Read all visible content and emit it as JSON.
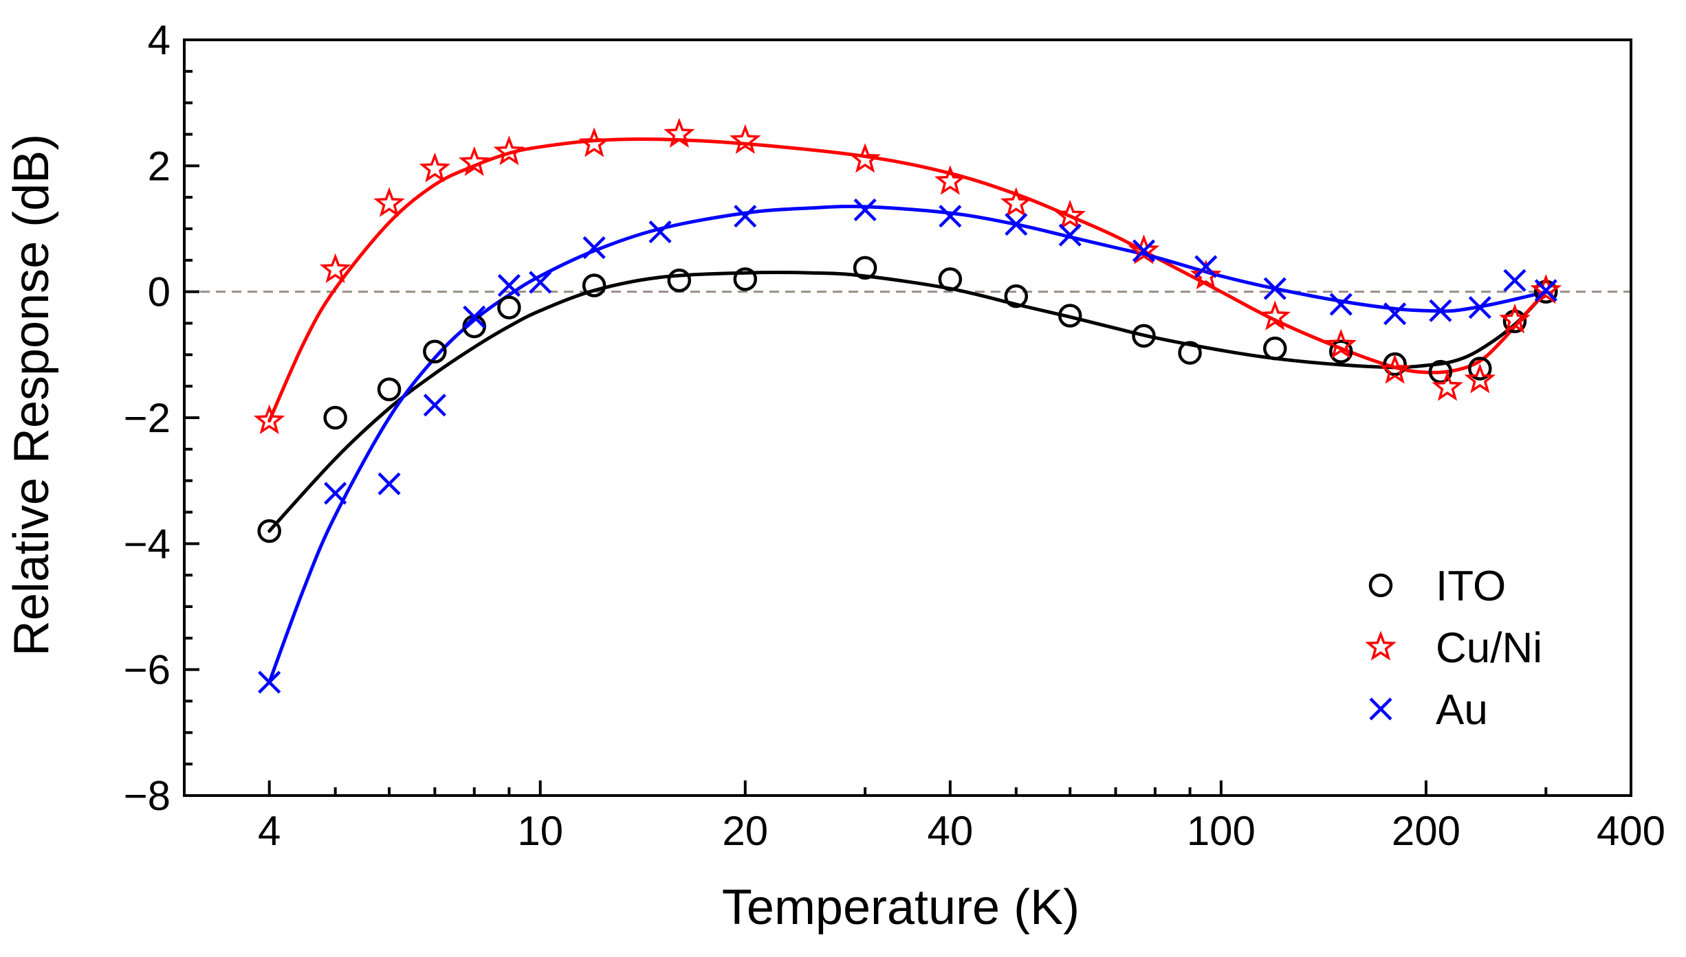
{
  "chart_data": {
    "type": "scatter",
    "title": "",
    "xlabel": "Temperature (K)",
    "ylabel": "Relative Response (dB)",
    "xscale": "log",
    "xlim": [
      3,
      400
    ],
    "ylim": [
      -8,
      4
    ],
    "x_ticks": [
      4,
      10,
      20,
      40,
      100,
      200,
      400
    ],
    "x_tick_labels": [
      "4",
      "10",
      "20",
      "40",
      "100",
      "200",
      "400"
    ],
    "y_ticks": [
      -8,
      -6,
      -4,
      -2,
      0,
      2,
      4
    ],
    "y_tick_labels": [
      "−8",
      "−6",
      "−4",
      "−2",
      "0",
      "2",
      "4"
    ],
    "reference_line": {
      "y": 0,
      "style": "dashed",
      "color": "#9a8c86"
    },
    "legend_position": "bottom-right",
    "series": [
      {
        "name": "ITO",
        "marker": "circle",
        "color": "#000000",
        "points": [
          [
            4,
            -3.8
          ],
          [
            5,
            -2.0
          ],
          [
            6,
            -1.55
          ],
          [
            7,
            -0.95
          ],
          [
            8,
            -0.55
          ],
          [
            9,
            -0.25
          ],
          [
            12,
            0.1
          ],
          [
            16,
            0.18
          ],
          [
            20,
            0.2
          ],
          [
            30,
            0.38
          ],
          [
            40,
            0.2
          ],
          [
            50,
            -0.07
          ],
          [
            60,
            -0.38
          ],
          [
            77,
            -0.7
          ],
          [
            90,
            -0.97
          ],
          [
            120,
            -0.9
          ],
          [
            150,
            -0.95
          ],
          [
            180,
            -1.15
          ],
          [
            210,
            -1.27
          ],
          [
            240,
            -1.22
          ],
          [
            270,
            -0.47
          ],
          [
            300,
            0.0
          ]
        ],
        "fit": [
          [
            4,
            -3.8
          ],
          [
            5,
            -2.65
          ],
          [
            6,
            -1.85
          ],
          [
            7,
            -1.3
          ],
          [
            8,
            -0.88
          ],
          [
            9,
            -0.55
          ],
          [
            10,
            -0.3
          ],
          [
            12,
            0.02
          ],
          [
            15,
            0.23
          ],
          [
            20,
            0.3
          ],
          [
            25,
            0.3
          ],
          [
            30,
            0.25
          ],
          [
            40,
            0.05
          ],
          [
            50,
            -0.2
          ],
          [
            60,
            -0.4
          ],
          [
            70,
            -0.58
          ],
          [
            80,
            -0.73
          ],
          [
            100,
            -0.93
          ],
          [
            120,
            -1.06
          ],
          [
            150,
            -1.16
          ],
          [
            180,
            -1.2
          ],
          [
            200,
            -1.17
          ],
          [
            220,
            -1.1
          ],
          [
            240,
            -0.92
          ],
          [
            270,
            -0.52
          ],
          [
            300,
            0.0
          ]
        ]
      },
      {
        "name": "Cu/Ni",
        "marker": "star",
        "color": "#ff0000",
        "points": [
          [
            4,
            -2.05
          ],
          [
            5,
            0.35
          ],
          [
            6,
            1.4
          ],
          [
            7,
            1.95
          ],
          [
            8,
            2.05
          ],
          [
            9,
            2.22
          ],
          [
            12,
            2.35
          ],
          [
            16,
            2.5
          ],
          [
            20,
            2.4
          ],
          [
            30,
            2.1
          ],
          [
            40,
            1.75
          ],
          [
            50,
            1.4
          ],
          [
            60,
            1.2
          ],
          [
            77,
            0.65
          ],
          [
            95,
            0.25
          ],
          [
            120,
            -0.4
          ],
          [
            150,
            -0.85
          ],
          [
            180,
            -1.25
          ],
          [
            215,
            -1.52
          ],
          [
            240,
            -1.4
          ],
          [
            270,
            -0.45
          ],
          [
            300,
            0.02
          ]
        ],
        "fit": [
          [
            4,
            -2.05
          ],
          [
            4.5,
            -0.8
          ],
          [
            5,
            0.05
          ],
          [
            6,
            1.1
          ],
          [
            7,
            1.7
          ],
          [
            8,
            2.0
          ],
          [
            9,
            2.2
          ],
          [
            10,
            2.3
          ],
          [
            12,
            2.4
          ],
          [
            15,
            2.42
          ],
          [
            20,
            2.35
          ],
          [
            30,
            2.15
          ],
          [
            40,
            1.88
          ],
          [
            50,
            1.55
          ],
          [
            60,
            1.2
          ],
          [
            70,
            0.88
          ],
          [
            80,
            0.55
          ],
          [
            100,
            0.0
          ],
          [
            120,
            -0.45
          ],
          [
            150,
            -0.9
          ],
          [
            180,
            -1.2
          ],
          [
            200,
            -1.28
          ],
          [
            220,
            -1.25
          ],
          [
            240,
            -1.1
          ],
          [
            260,
            -0.75
          ],
          [
            280,
            -0.35
          ],
          [
            300,
            0.0
          ]
        ]
      },
      {
        "name": "Au",
        "marker": "x",
        "color": "#0000ff",
        "points": [
          [
            4,
            -6.2
          ],
          [
            5,
            -3.2
          ],
          [
            6,
            -3.05
          ],
          [
            7,
            -1.8
          ],
          [
            8,
            -0.4
          ],
          [
            9,
            0.1
          ],
          [
            10,
            0.15
          ],
          [
            12,
            0.7
          ],
          [
            15,
            0.95
          ],
          [
            20,
            1.2
          ],
          [
            30,
            1.3
          ],
          [
            40,
            1.2
          ],
          [
            50,
            1.07
          ],
          [
            60,
            0.9
          ],
          [
            77,
            0.65
          ],
          [
            95,
            0.4
          ],
          [
            120,
            0.05
          ],
          [
            150,
            -0.2
          ],
          [
            180,
            -0.35
          ],
          [
            210,
            -0.3
          ],
          [
            240,
            -0.25
          ],
          [
            270,
            0.18
          ],
          [
            300,
            0.02
          ]
        ],
        "fit": [
          [
            4,
            -6.2
          ],
          [
            4.5,
            -4.7
          ],
          [
            5,
            -3.55
          ],
          [
            6,
            -2.0
          ],
          [
            7,
            -1.05
          ],
          [
            8,
            -0.45
          ],
          [
            9,
            -0.05
          ],
          [
            10,
            0.25
          ],
          [
            12,
            0.65
          ],
          [
            15,
            1.0
          ],
          [
            20,
            1.25
          ],
          [
            25,
            1.33
          ],
          [
            30,
            1.35
          ],
          [
            40,
            1.25
          ],
          [
            50,
            1.07
          ],
          [
            60,
            0.87
          ],
          [
            70,
            0.7
          ],
          [
            80,
            0.55
          ],
          [
            100,
            0.25
          ],
          [
            120,
            0.05
          ],
          [
            150,
            -0.15
          ],
          [
            180,
            -0.27
          ],
          [
            200,
            -0.3
          ],
          [
            220,
            -0.3
          ],
          [
            250,
            -0.2
          ],
          [
            280,
            -0.08
          ],
          [
            300,
            0.0
          ]
        ]
      }
    ]
  }
}
